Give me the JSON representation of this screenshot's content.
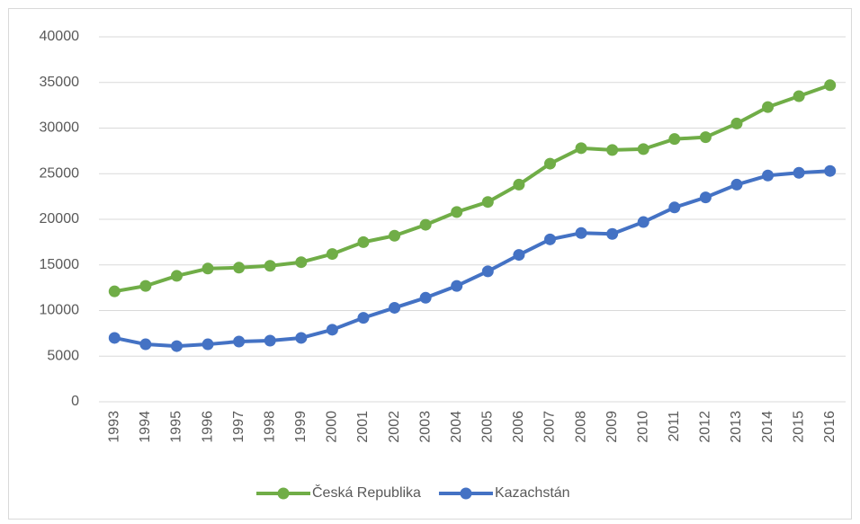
{
  "chart_data": {
    "type": "line",
    "categories": [
      "1993",
      "1994",
      "1995",
      "1996",
      "1997",
      "1998",
      "1999",
      "2000",
      "2001",
      "2002",
      "2003",
      "2004",
      "2005",
      "2006",
      "2007",
      "2008",
      "2009",
      "2010",
      "2011",
      "2012",
      "2013",
      "2014",
      "2015",
      "2016"
    ],
    "series": [
      {
        "name": "Česká Republika",
        "color": "#70ad47",
        "values": [
          12100,
          12700,
          13800,
          14600,
          14700,
          14900,
          15300,
          16200,
          17500,
          18200,
          19400,
          20800,
          21900,
          23800,
          26100,
          27800,
          27600,
          27700,
          28800,
          29000,
          30500,
          32300,
          33500,
          34700
        ]
      },
      {
        "name": "Kazachstán",
        "color": "#4472c4",
        "values": [
          7000,
          6300,
          6100,
          6300,
          6600,
          6700,
          7000,
          7900,
          9200,
          10300,
          11400,
          12700,
          14300,
          16100,
          17800,
          18500,
          18400,
          19700,
          21300,
          22400,
          23800,
          24800,
          25100,
          25300
        ]
      }
    ],
    "ylim": [
      0,
      40000
    ],
    "yticks": [
      0,
      5000,
      10000,
      15000,
      20000,
      25000,
      30000,
      35000,
      40000
    ],
    "grid": true,
    "legend": "bottom"
  }
}
